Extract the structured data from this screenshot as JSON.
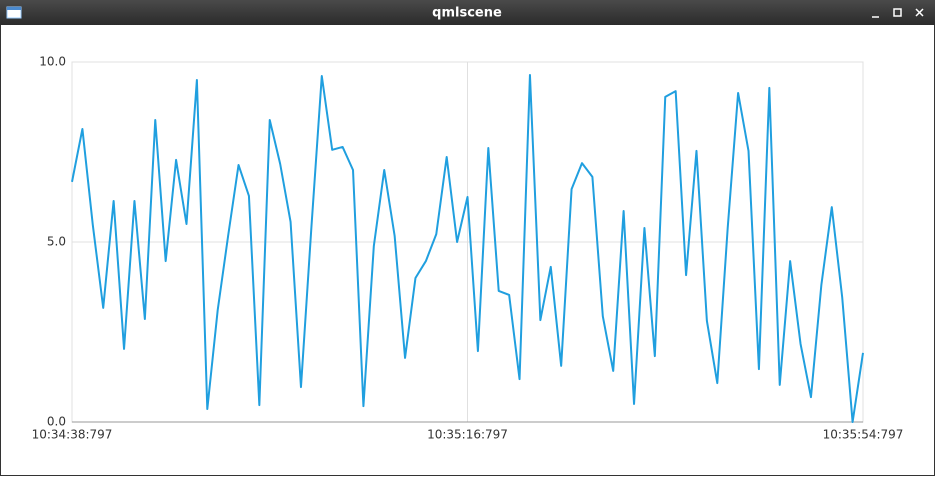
{
  "window": {
    "title": "qmlscene"
  },
  "chart_data": {
    "type": "line",
    "x": [
      "10:34:38:797",
      "10:34:39:797",
      "10:34:40:797",
      "10:34:41:797",
      "10:34:42:797",
      "10:34:43:797",
      "10:34:44:797",
      "10:34:45:797",
      "10:34:46:797",
      "10:34:47:797",
      "10:34:48:797",
      "10:34:49:797",
      "10:34:50:797",
      "10:34:51:797",
      "10:34:52:797",
      "10:34:53:797",
      "10:34:54:797",
      "10:34:55:797",
      "10:34:56:797",
      "10:34:57:797",
      "10:34:58:797",
      "10:34:59:797",
      "10:35:00:797",
      "10:35:01:797",
      "10:35:02:797",
      "10:35:03:797",
      "10:35:04:797",
      "10:35:05:797",
      "10:35:06:797",
      "10:35:07:797",
      "10:35:08:797",
      "10:35:09:797",
      "10:35:10:797",
      "10:35:11:797",
      "10:35:12:797",
      "10:35:13:797",
      "10:35:14:797",
      "10:35:15:797",
      "10:35:16:797",
      "10:35:17:797",
      "10:35:18:797",
      "10:35:19:797",
      "10:35:20:797",
      "10:35:21:797",
      "10:35:22:797",
      "10:35:23:797",
      "10:35:24:797",
      "10:35:25:797",
      "10:35:26:797",
      "10:35:27:797",
      "10:35:28:797",
      "10:35:29:797",
      "10:35:30:797",
      "10:35:31:797",
      "10:35:32:797",
      "10:35:33:797",
      "10:35:34:797",
      "10:35:35:797",
      "10:35:36:797",
      "10:35:37:797",
      "10:35:38:797",
      "10:35:39:797",
      "10:35:40:797",
      "10:35:41:797",
      "10:35:42:797",
      "10:35:43:797",
      "10:35:44:797",
      "10:35:45:797",
      "10:35:46:797",
      "10:35:47:797",
      "10:35:48:797",
      "10:35:49:797",
      "10:35:50:797",
      "10:35:51:797",
      "10:35:52:797",
      "10:35:53:797",
      "10:35:54:797"
    ],
    "values": [
      6.67,
      8.14,
      5.47,
      3.17,
      6.14,
      2.03,
      6.14,
      2.86,
      8.39,
      4.47,
      7.28,
      5.5,
      9.5,
      0.36,
      3.11,
      5.17,
      7.14,
      6.28,
      0.47,
      8.39,
      7.17,
      5.56,
      0.97,
      5.4,
      9.61,
      7.56,
      7.64,
      7.0,
      0.44,
      4.89,
      7.0,
      5.17,
      1.78,
      4.0,
      4.47,
      5.22,
      7.36,
      5.0,
      6.25,
      1.97,
      7.61,
      3.64,
      3.53,
      1.19,
      9.64,
      2.83,
      4.31,
      1.56,
      6.47,
      7.19,
      6.81,
      2.94,
      1.42,
      5.86,
      0.5,
      5.39,
      1.83,
      9.03,
      9.19,
      4.08,
      7.53,
      2.81,
      1.08,
      5.39,
      9.14,
      7.53,
      1.47,
      9.28,
      1.03,
      4.47,
      2.17,
      0.69,
      3.81,
      5.97,
      3.47,
      0.0,
      1.92
    ],
    "color": "#209fdf",
    "xlim": [
      "10:34:38:797",
      "10:35:54:797"
    ],
    "xticks": [
      "10:34:38:797",
      "10:35:16:797",
      "10:35:54:797"
    ],
    "ylim": [
      0,
      10
    ],
    "yticks": [
      {
        "value": 0,
        "label": "0.0"
      },
      {
        "value": 5,
        "label": "5.0"
      },
      {
        "value": 10,
        "label": "10.0"
      }
    ],
    "grid": true
  }
}
